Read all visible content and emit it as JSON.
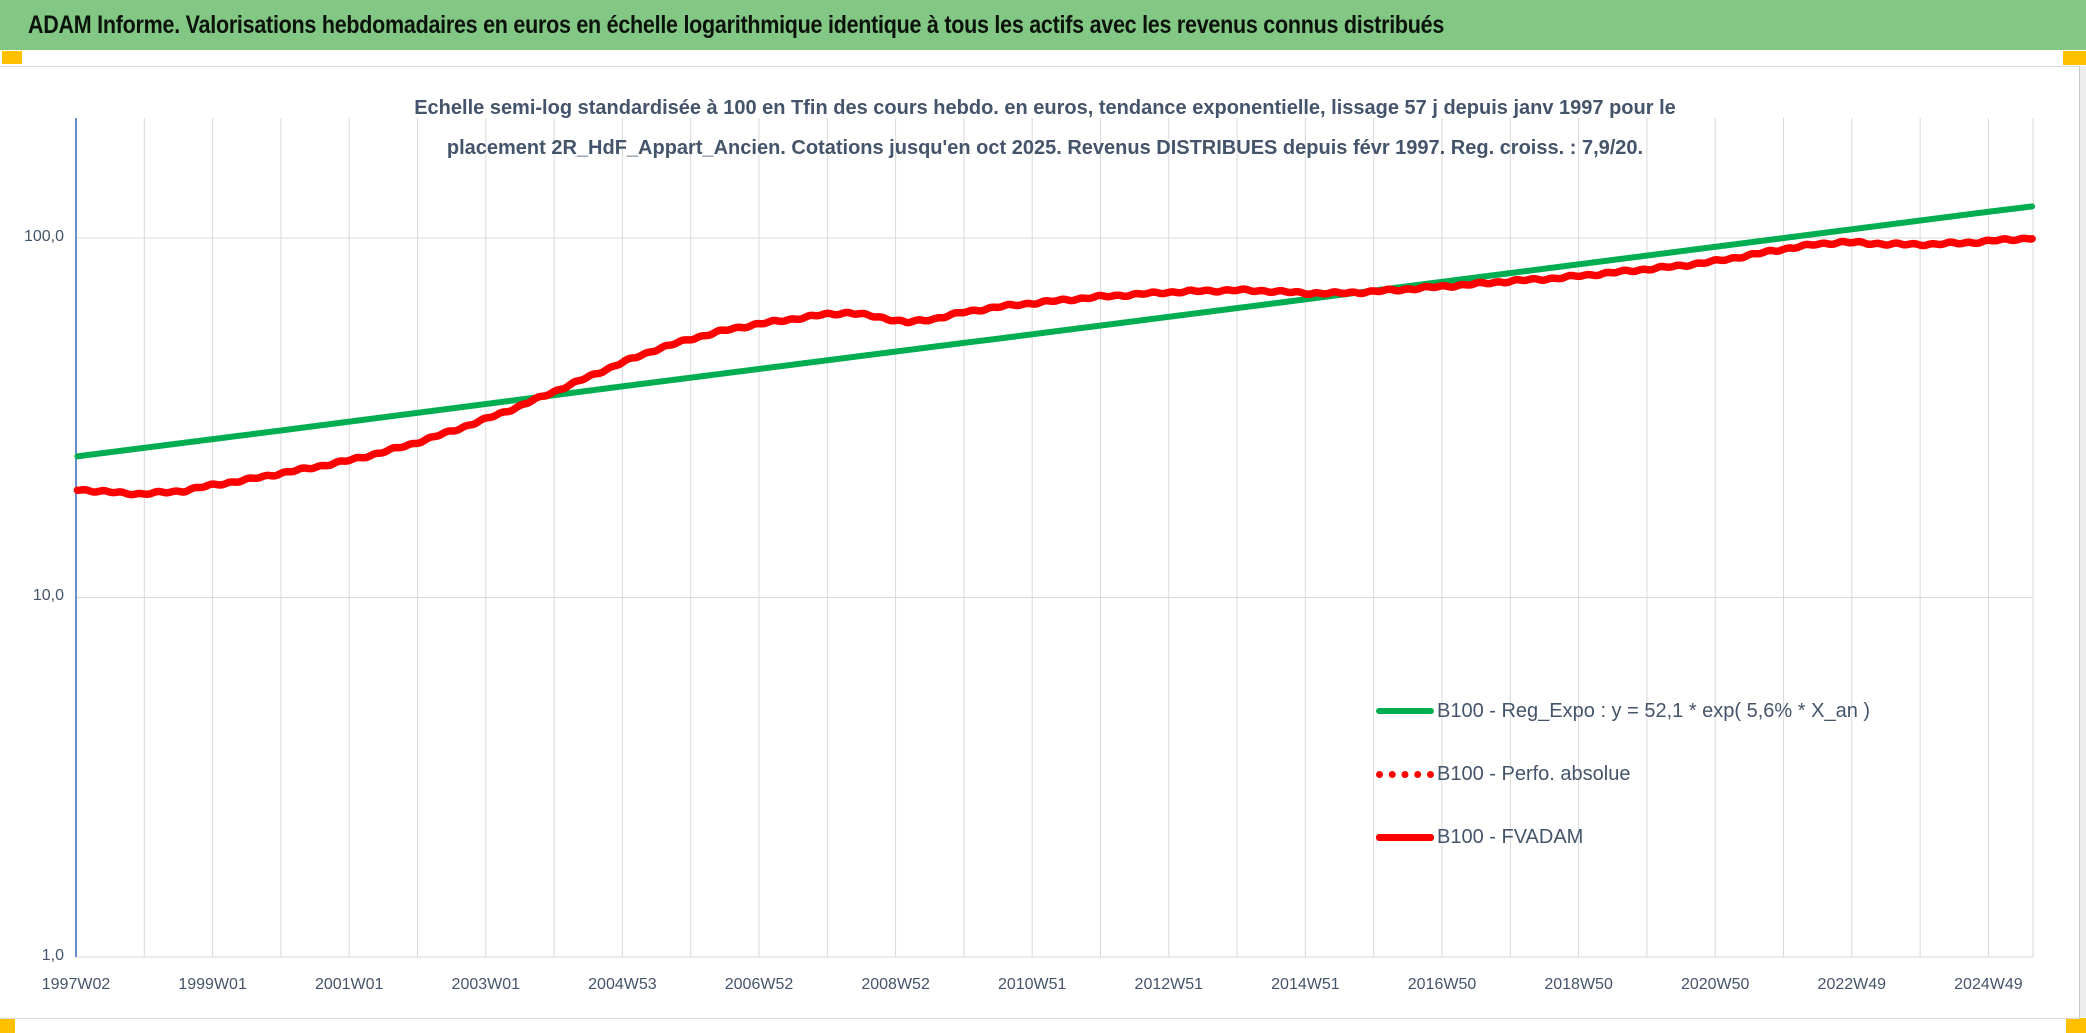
{
  "header": {
    "title": "ADAM Informe. Valorisations hebdomadaires en euros en échelle logarithmique identique à tous les actifs avec les revenus connus distribués"
  },
  "chart": {
    "subtitle_line1": "Echelle semi-log standardisée à 100 en Tfin des cours hebdo. en euros, tendance exponentielle, lissage 57 j depuis janv 1997 pour le",
    "subtitle_line2": "placement 2R_HdF_Appart_Ancien. Cotations jusqu'en oct 2025. Revenus DISTRIBUES depuis févr 1997. Reg. croiss. : 7,9/20.",
    "y_ticks": [
      "100,0",
      "10,0",
      "1,0"
    ]
  },
  "colors": {
    "header_green": "#83C785",
    "corner_yellow": "#FFC000",
    "text_slate": "#44546A",
    "gridline": "#D9D9D9",
    "axis_blue": "#4472C4",
    "series_green": "#00AD50",
    "series_red": "#FE0000"
  },
  "chart_data": {
    "type": "line",
    "title": "Echelle semi-log standardisée à 100 en Tfin des cours hebdo. en euros, tendance exponentielle, lissage 57 j depuis janv 1997 pour le placement 2R_HdF_Appart_Ancien. Cotations jusqu'en oct 2025. Revenus DISTRIBUES depuis févr 1997. Reg. croiss. : 7,9/20.",
    "x_axis": {
      "type": "weekly-categories",
      "tick_labels": [
        "1997W02",
        "1999W01",
        "2001W01",
        "2003W01",
        "2004W53",
        "2006W52",
        "2008W52",
        "2010W51",
        "2012W51",
        "2014W51",
        "2016W50",
        "2018W50",
        "2020W50",
        "2022W49",
        "2024W49"
      ],
      "range_years": [
        1997.03,
        2025.7
      ],
      "gridlines": "yearly"
    },
    "y_axis": {
      "scale": "log10",
      "ticks": [
        100.0,
        10.0,
        1.0
      ],
      "tick_labels": [
        "100,0",
        "10,0",
        "1,0"
      ],
      "range": [
        1.0,
        190.0
      ],
      "standardized": "100 at final quote (Tfin)"
    },
    "legend_position": "inside lower right",
    "series": [
      {
        "name": "B100 - Reg_Expo : y = 52,1 * exp( 5,6% * X_an )",
        "color": "#00AD50",
        "style": "solid",
        "regression": {
          "a": 52.1,
          "growth_rate_per_year": 0.056
        },
        "points": [
          [
            1997.05,
            24.7
          ],
          [
            2000.0,
            29.1
          ],
          [
            2005.0,
            38.6
          ],
          [
            2010.0,
            51.0
          ],
          [
            2010.4,
            52.1
          ],
          [
            2015.0,
            67.4
          ],
          [
            2020.0,
            89.2
          ],
          [
            2025.0,
            118.1
          ],
          [
            2025.68,
            122.5
          ]
        ]
      },
      {
        "name": "B100 - Perfo. absolue",
        "color": "#FE0000",
        "style": "dotted",
        "note": "coincides with (is hidden under) B100 - FVADAM since revenues are distributed",
        "points": [
          [
            1997.05,
            20.0
          ],
          [
            1997.4,
            19.7
          ],
          [
            1998.0,
            19.4
          ],
          [
            1998.6,
            19.8
          ],
          [
            1999.0,
            20.5
          ],
          [
            1999.5,
            21.2
          ],
          [
            2000.0,
            22.1
          ],
          [
            2000.5,
            23.0
          ],
          [
            2001.0,
            24.0
          ],
          [
            2001.5,
            25.3
          ],
          [
            2002.0,
            26.9
          ],
          [
            2002.5,
            28.9
          ],
          [
            2003.0,
            31.2
          ],
          [
            2003.5,
            33.9
          ],
          [
            2003.9,
            36.5
          ],
          [
            2004.5,
            40.8
          ],
          [
            2005.0,
            44.8
          ],
          [
            2005.5,
            48.8
          ],
          [
            2006.0,
            52.2
          ],
          [
            2006.5,
            55.2
          ],
          [
            2007.0,
            57.6
          ],
          [
            2007.5,
            59.4
          ],
          [
            2008.0,
            61.3
          ],
          [
            2008.35,
            62.0
          ],
          [
            2008.8,
            60.2
          ],
          [
            2009.2,
            58.2
          ],
          [
            2009.6,
            59.6
          ],
          [
            2010.0,
            62.0
          ],
          [
            2010.5,
            64.2
          ],
          [
            2011.0,
            65.8
          ],
          [
            2011.5,
            67.2
          ],
          [
            2012.0,
            68.6
          ],
          [
            2012.5,
            69.6
          ],
          [
            2013.0,
            70.6
          ],
          [
            2013.5,
            71.2
          ],
          [
            2014.0,
            71.6
          ],
          [
            2014.5,
            71.2
          ],
          [
            2015.0,
            70.3
          ],
          [
            2015.5,
            70.2
          ],
          [
            2016.0,
            70.9
          ],
          [
            2016.5,
            72.0
          ],
          [
            2017.0,
            73.2
          ],
          [
            2017.5,
            74.4
          ],
          [
            2018.0,
            75.8
          ],
          [
            2018.7,
            77.3
          ],
          [
            2019.5,
            80.0
          ],
          [
            2020.0,
            81.8
          ],
          [
            2020.5,
            83.6
          ],
          [
            2021.0,
            86.0
          ],
          [
            2021.5,
            89.3
          ],
          [
            2022.0,
            93.0
          ],
          [
            2022.5,
            96.0
          ],
          [
            2022.9,
            97.4
          ],
          [
            2023.3,
            96.6
          ],
          [
            2023.8,
            95.9
          ],
          [
            2024.3,
            96.2
          ],
          [
            2024.8,
            97.2
          ],
          [
            2025.2,
            98.6
          ],
          [
            2025.68,
            100.0
          ]
        ]
      },
      {
        "name": "B100 - FVADAM",
        "color": "#FE0000",
        "style": "solid",
        "points": [
          [
            1997.05,
            20.0
          ],
          [
            1997.4,
            19.7
          ],
          [
            1998.0,
            19.4
          ],
          [
            1998.6,
            19.8
          ],
          [
            1999.0,
            20.5
          ],
          [
            1999.5,
            21.2
          ],
          [
            2000.0,
            22.1
          ],
          [
            2000.5,
            23.0
          ],
          [
            2001.0,
            24.0
          ],
          [
            2001.5,
            25.3
          ],
          [
            2002.0,
            26.9
          ],
          [
            2002.5,
            28.9
          ],
          [
            2003.0,
            31.2
          ],
          [
            2003.5,
            33.9
          ],
          [
            2003.9,
            36.5
          ],
          [
            2004.5,
            40.8
          ],
          [
            2005.0,
            44.8
          ],
          [
            2005.5,
            48.8
          ],
          [
            2006.0,
            52.2
          ],
          [
            2006.5,
            55.2
          ],
          [
            2007.0,
            57.6
          ],
          [
            2007.5,
            59.4
          ],
          [
            2008.0,
            61.3
          ],
          [
            2008.35,
            62.0
          ],
          [
            2008.8,
            60.2
          ],
          [
            2009.2,
            58.2
          ],
          [
            2009.6,
            59.6
          ],
          [
            2010.0,
            62.0
          ],
          [
            2010.5,
            64.2
          ],
          [
            2011.0,
            65.8
          ],
          [
            2011.5,
            67.2
          ],
          [
            2012.0,
            68.6
          ],
          [
            2012.5,
            69.6
          ],
          [
            2013.0,
            70.6
          ],
          [
            2013.5,
            71.2
          ],
          [
            2014.0,
            71.6
          ],
          [
            2014.5,
            71.2
          ],
          [
            2015.0,
            70.3
          ],
          [
            2015.5,
            70.2
          ],
          [
            2016.0,
            70.9
          ],
          [
            2016.5,
            72.0
          ],
          [
            2017.0,
            73.2
          ],
          [
            2017.5,
            74.4
          ],
          [
            2018.0,
            75.8
          ],
          [
            2018.7,
            77.3
          ],
          [
            2019.5,
            80.0
          ],
          [
            2020.0,
            81.8
          ],
          [
            2020.5,
            83.6
          ],
          [
            2021.0,
            86.0
          ],
          [
            2021.5,
            89.3
          ],
          [
            2022.0,
            93.0
          ],
          [
            2022.5,
            96.0
          ],
          [
            2022.9,
            97.4
          ],
          [
            2023.3,
            96.6
          ],
          [
            2023.8,
            95.9
          ],
          [
            2024.3,
            96.2
          ],
          [
            2024.8,
            97.2
          ],
          [
            2025.2,
            98.6
          ],
          [
            2025.68,
            100.0
          ]
        ]
      }
    ]
  }
}
